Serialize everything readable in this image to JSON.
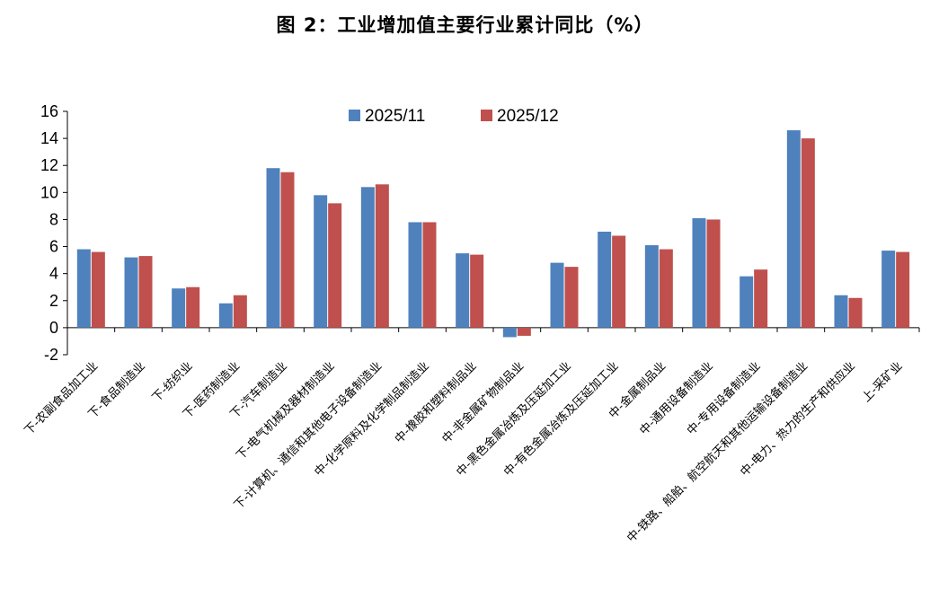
{
  "chart_data": {
    "type": "bar",
    "title": "图 2：工业增加值主要行业累计同比（%）",
    "ylim": [
      -2,
      16
    ],
    "yticks": [
      -2,
      0,
      2,
      4,
      6,
      8,
      10,
      12,
      14,
      16
    ],
    "grid": false,
    "legend_position": "top-center",
    "categories": [
      "下-农副食品加工业",
      "下-食品制造业",
      "下-纺织业",
      "下-医药制造业",
      "下-汽车制造业",
      "下-电气机械及器材制造业",
      "下-计算机、通信和其他电子设备制造业",
      "中-化学原料及化学制品制造业",
      "中-橡胶和塑料制品业",
      "中-非金属矿物制品业",
      "中-黑色金属冶炼及压延加工业",
      "中-有色金属冶炼及压延加工业",
      "中-金属制品业",
      "中-通用设备制造业",
      "中-专用设备制造业",
      "中-铁路、船舶、航空航天和其他运输设备制造业",
      "中-电力、热力的生产和供应业",
      "上-采矿业"
    ],
    "series": [
      {
        "name": "2025/11",
        "color": "#4f81bd",
        "values": [
          5.8,
          5.2,
          2.9,
          1.8,
          11.8,
          9.8,
          10.4,
          7.8,
          5.5,
          -0.7,
          4.8,
          7.1,
          6.1,
          8.1,
          3.8,
          14.6,
          2.4,
          5.7
        ]
      },
      {
        "name": "2025/12",
        "color": "#c0504d",
        "values": [
          5.6,
          5.3,
          3.0,
          2.4,
          11.5,
          9.2,
          10.6,
          7.8,
          5.4,
          -0.6,
          4.5,
          6.8,
          5.8,
          8.0,
          4.3,
          14.0,
          2.2,
          5.6
        ]
      }
    ]
  }
}
